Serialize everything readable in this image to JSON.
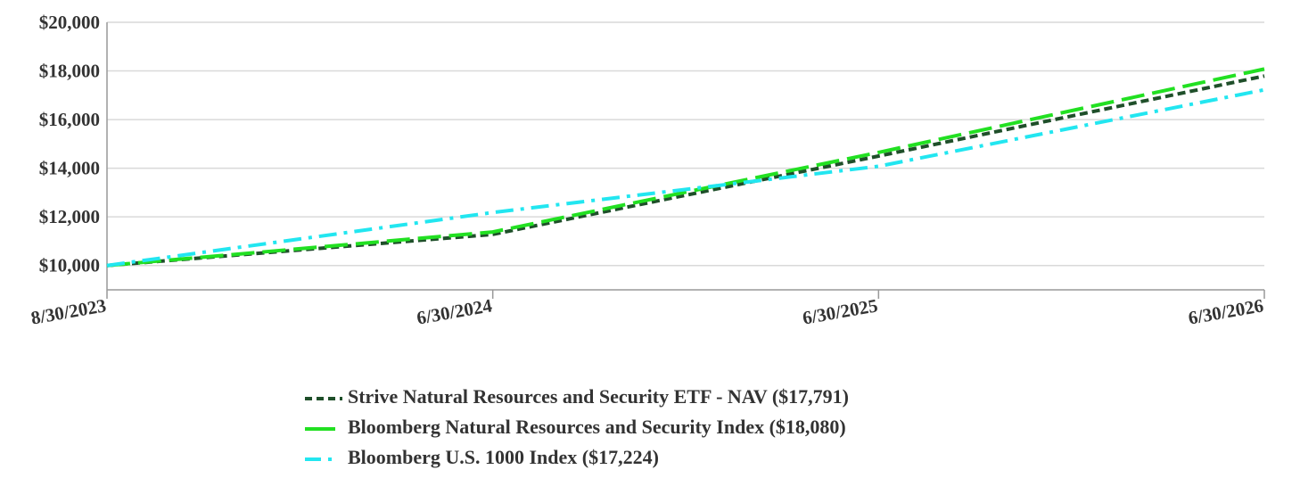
{
  "chart_data": {
    "type": "line",
    "x_labels": [
      "8/30/2023",
      "6/30/2024",
      "6/30/2025",
      "6/30/2026"
    ],
    "y_ticks": [
      "$10,000",
      "$12,000",
      "$14,000",
      "$16,000",
      "$18,000",
      "$20,000"
    ],
    "y_tick_values": [
      10000,
      12000,
      14000,
      16000,
      18000,
      20000
    ],
    "ylim": [
      9000,
      20000
    ],
    "grid": true,
    "legend_position": "bottom",
    "series": [
      {
        "name": "Strive Natural Resources and Security ETF - NAV ($17,791)",
        "color": "#1f4f2a",
        "dash": "short-dash",
        "values": [
          10000,
          11280,
          14500,
          17791
        ]
      },
      {
        "name": "Bloomberg Natural Resources and Security Index ($18,080)",
        "color": "#22e022",
        "dash": "long-dash",
        "values": [
          10000,
          11380,
          14650,
          18080
        ]
      },
      {
        "name": "Bloomberg U.S. 1000 Index ($17,224)",
        "color": "#22e6f0",
        "dash": "dash-dot",
        "values": [
          10000,
          12180,
          14080,
          17224
        ]
      }
    ]
  }
}
